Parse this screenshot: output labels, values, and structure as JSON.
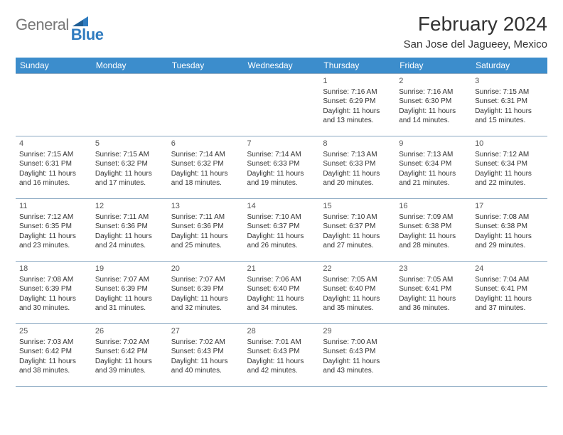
{
  "logo": {
    "general": "General",
    "blue": "Blue"
  },
  "title": "February 2024",
  "location": "San Jose del Jagueey, Mexico",
  "colors": {
    "header_bg": "#3c8dcc",
    "header_text": "#ffffff",
    "border": "#8aa8c2",
    "text": "#333333",
    "logo_gray": "#777777",
    "logo_blue": "#2f7bbf",
    "background": "#ffffff"
  },
  "day_headers": [
    "Sunday",
    "Monday",
    "Tuesday",
    "Wednesday",
    "Thursday",
    "Friday",
    "Saturday"
  ],
  "weeks": [
    [
      null,
      null,
      null,
      null,
      {
        "n": "1",
        "sr": "7:16 AM",
        "ss": "6:29 PM",
        "dl": "11 hours and 13 minutes."
      },
      {
        "n": "2",
        "sr": "7:16 AM",
        "ss": "6:30 PM",
        "dl": "11 hours and 14 minutes."
      },
      {
        "n": "3",
        "sr": "7:15 AM",
        "ss": "6:31 PM",
        "dl": "11 hours and 15 minutes."
      }
    ],
    [
      {
        "n": "4",
        "sr": "7:15 AM",
        "ss": "6:31 PM",
        "dl": "11 hours and 16 minutes."
      },
      {
        "n": "5",
        "sr": "7:15 AM",
        "ss": "6:32 PM",
        "dl": "11 hours and 17 minutes."
      },
      {
        "n": "6",
        "sr": "7:14 AM",
        "ss": "6:32 PM",
        "dl": "11 hours and 18 minutes."
      },
      {
        "n": "7",
        "sr": "7:14 AM",
        "ss": "6:33 PM",
        "dl": "11 hours and 19 minutes."
      },
      {
        "n": "8",
        "sr": "7:13 AM",
        "ss": "6:33 PM",
        "dl": "11 hours and 20 minutes."
      },
      {
        "n": "9",
        "sr": "7:13 AM",
        "ss": "6:34 PM",
        "dl": "11 hours and 21 minutes."
      },
      {
        "n": "10",
        "sr": "7:12 AM",
        "ss": "6:34 PM",
        "dl": "11 hours and 22 minutes."
      }
    ],
    [
      {
        "n": "11",
        "sr": "7:12 AM",
        "ss": "6:35 PM",
        "dl": "11 hours and 23 minutes."
      },
      {
        "n": "12",
        "sr": "7:11 AM",
        "ss": "6:36 PM",
        "dl": "11 hours and 24 minutes."
      },
      {
        "n": "13",
        "sr": "7:11 AM",
        "ss": "6:36 PM",
        "dl": "11 hours and 25 minutes."
      },
      {
        "n": "14",
        "sr": "7:10 AM",
        "ss": "6:37 PM",
        "dl": "11 hours and 26 minutes."
      },
      {
        "n": "15",
        "sr": "7:10 AM",
        "ss": "6:37 PM",
        "dl": "11 hours and 27 minutes."
      },
      {
        "n": "16",
        "sr": "7:09 AM",
        "ss": "6:38 PM",
        "dl": "11 hours and 28 minutes."
      },
      {
        "n": "17",
        "sr": "7:08 AM",
        "ss": "6:38 PM",
        "dl": "11 hours and 29 minutes."
      }
    ],
    [
      {
        "n": "18",
        "sr": "7:08 AM",
        "ss": "6:39 PM",
        "dl": "11 hours and 30 minutes."
      },
      {
        "n": "19",
        "sr": "7:07 AM",
        "ss": "6:39 PM",
        "dl": "11 hours and 31 minutes."
      },
      {
        "n": "20",
        "sr": "7:07 AM",
        "ss": "6:39 PM",
        "dl": "11 hours and 32 minutes."
      },
      {
        "n": "21",
        "sr": "7:06 AM",
        "ss": "6:40 PM",
        "dl": "11 hours and 34 minutes."
      },
      {
        "n": "22",
        "sr": "7:05 AM",
        "ss": "6:40 PM",
        "dl": "11 hours and 35 minutes."
      },
      {
        "n": "23",
        "sr": "7:05 AM",
        "ss": "6:41 PM",
        "dl": "11 hours and 36 minutes."
      },
      {
        "n": "24",
        "sr": "7:04 AM",
        "ss": "6:41 PM",
        "dl": "11 hours and 37 minutes."
      }
    ],
    [
      {
        "n": "25",
        "sr": "7:03 AM",
        "ss": "6:42 PM",
        "dl": "11 hours and 38 minutes."
      },
      {
        "n": "26",
        "sr": "7:02 AM",
        "ss": "6:42 PM",
        "dl": "11 hours and 39 minutes."
      },
      {
        "n": "27",
        "sr": "7:02 AM",
        "ss": "6:43 PM",
        "dl": "11 hours and 40 minutes."
      },
      {
        "n": "28",
        "sr": "7:01 AM",
        "ss": "6:43 PM",
        "dl": "11 hours and 42 minutes."
      },
      {
        "n": "29",
        "sr": "7:00 AM",
        "ss": "6:43 PM",
        "dl": "11 hours and 43 minutes."
      },
      null,
      null
    ]
  ],
  "labels": {
    "sunrise": "Sunrise:",
    "sunset": "Sunset:",
    "daylight": "Daylight:"
  }
}
